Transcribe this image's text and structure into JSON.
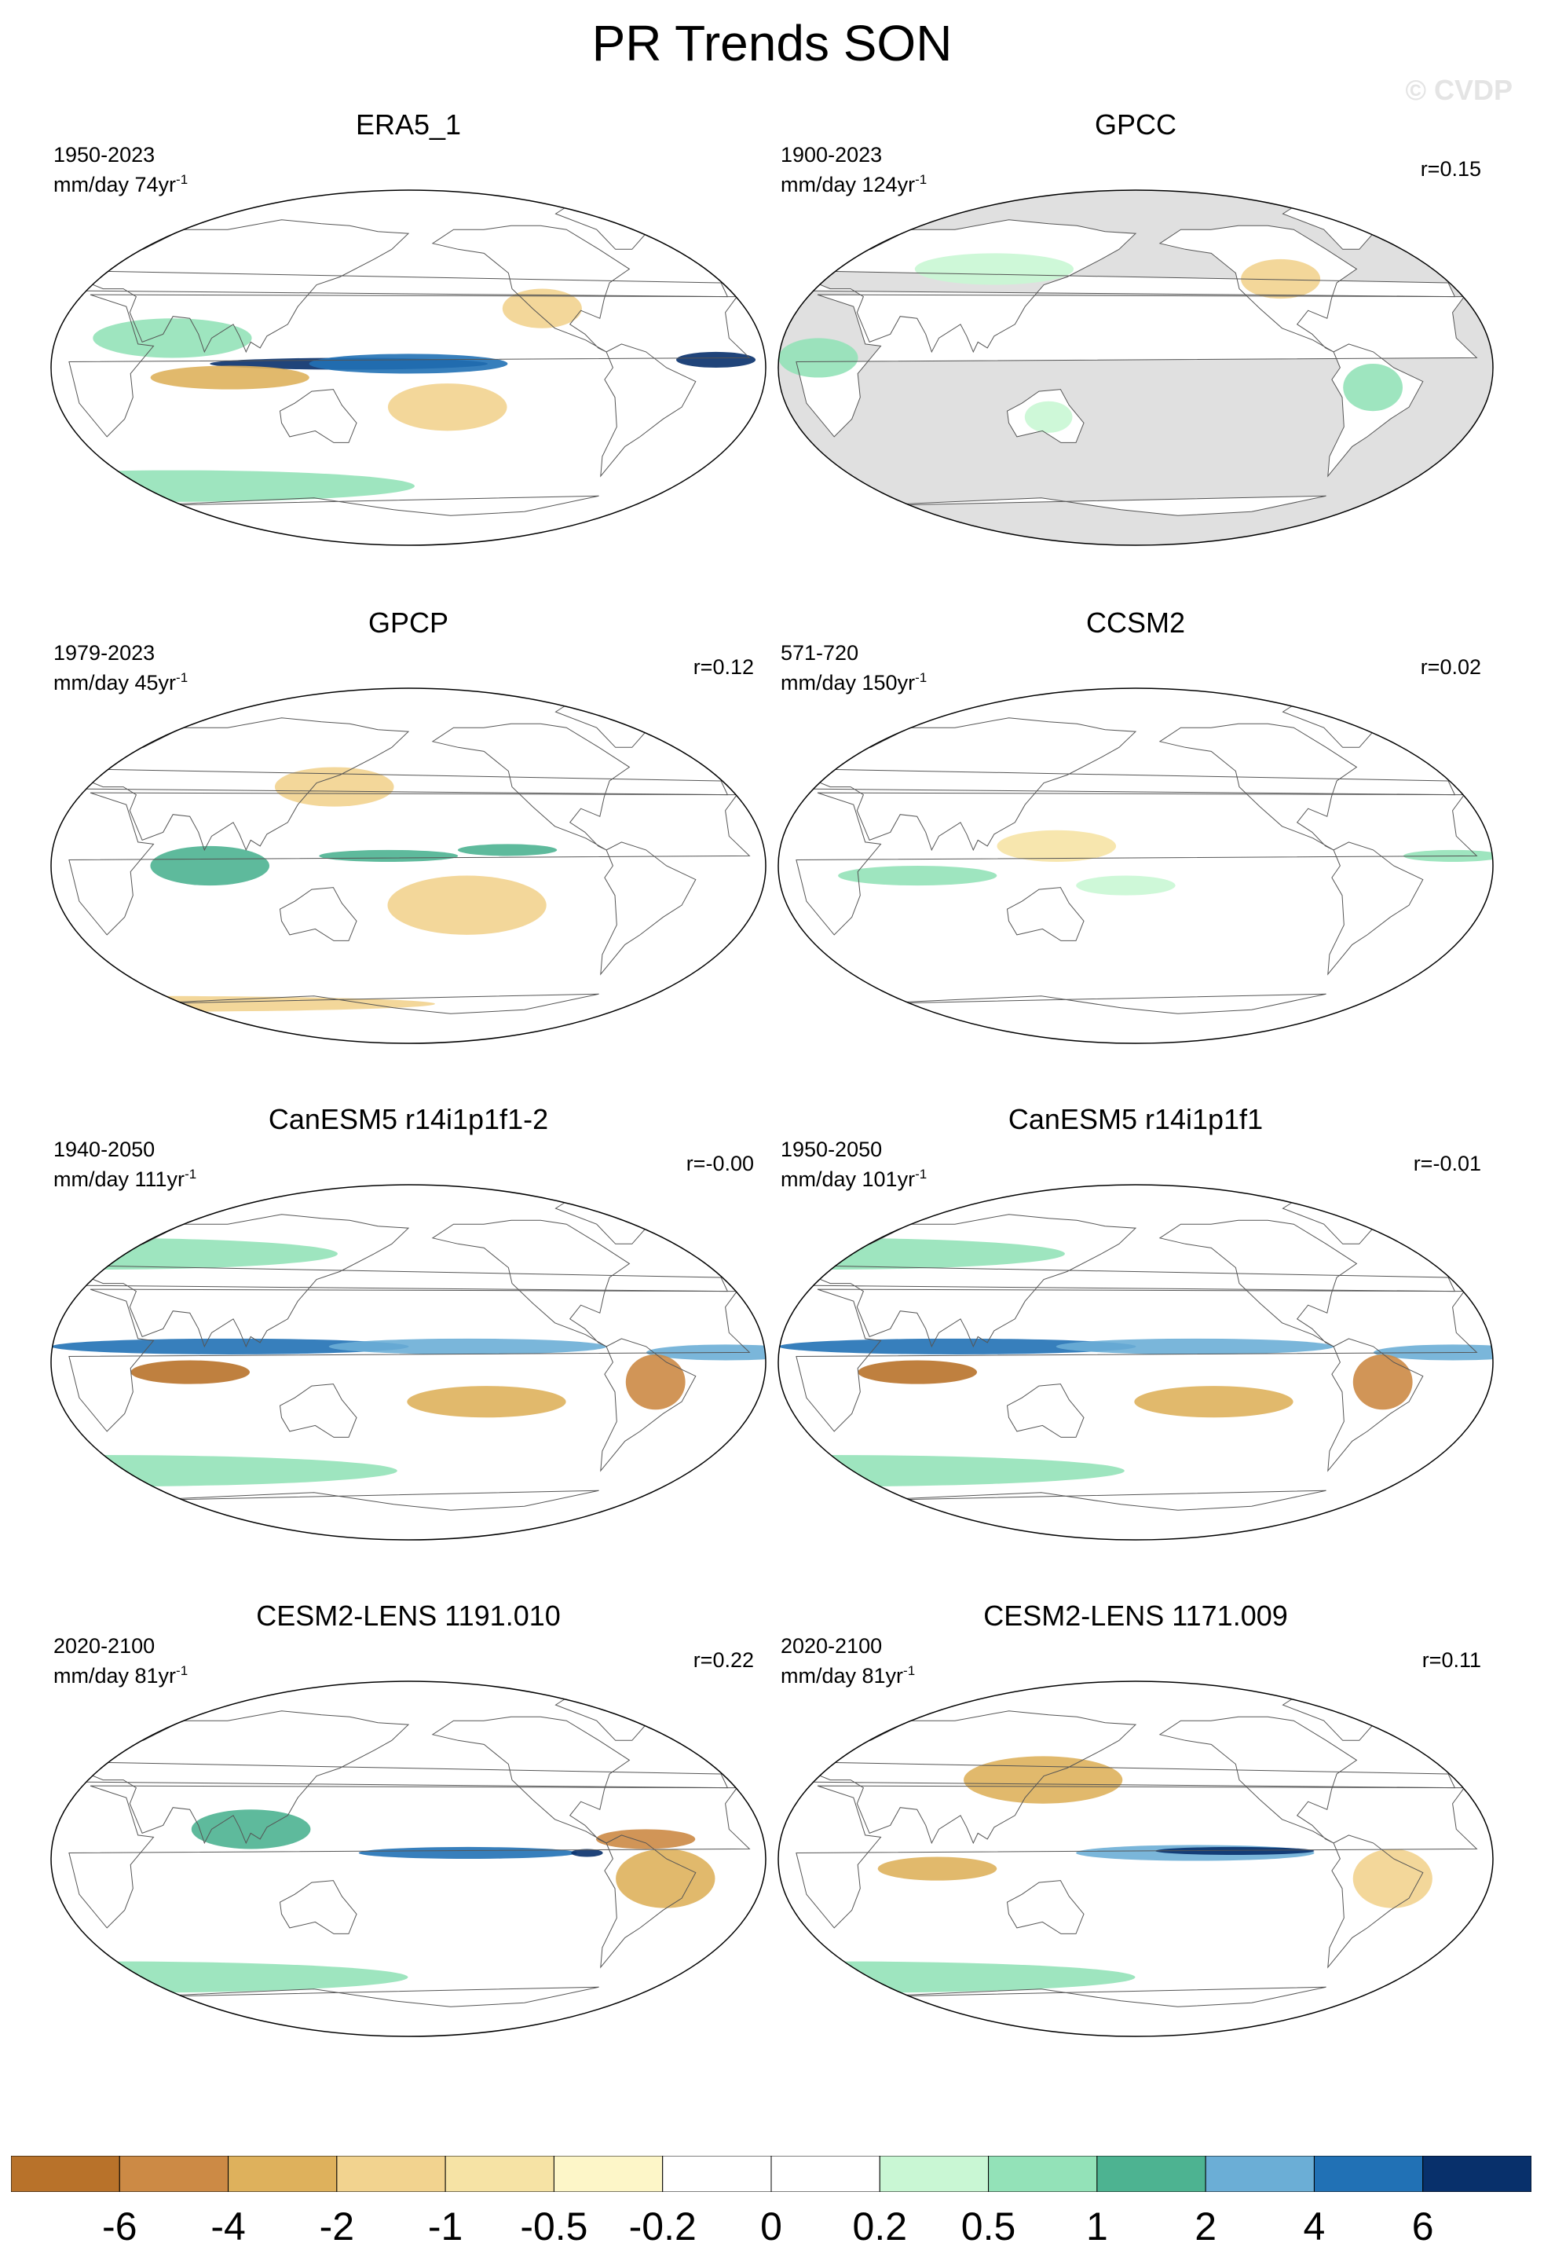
{
  "title": "PR Trends SON",
  "watermark": "© CVDP",
  "panels": [
    {
      "title": "ERA5_1",
      "period": "1950-2023",
      "units": "mm/day 74yr",
      "units_sup": "-1",
      "r": "",
      "land_mask": false,
      "blobs": [
        {
          "lon": 150,
          "lat": 2,
          "rx": 70,
          "ry": 3,
          "color": "#08306b"
        },
        {
          "lon": 180,
          "lat": 2,
          "rx": 50,
          "ry": 5,
          "color": "#2171b5"
        },
        {
          "lon": -25,
          "lat": 4,
          "rx": 20,
          "ry": 4,
          "color": "#08306b"
        },
        {
          "lon": 90,
          "lat": -5,
          "rx": 40,
          "ry": 6,
          "color": "#deb15c"
        },
        {
          "lon": -160,
          "lat": -20,
          "rx": 30,
          "ry": 12,
          "color": "#f2d38f"
        },
        {
          "lon": 60,
          "lat": 15,
          "rx": 40,
          "ry": 10,
          "color": "#93e2b8"
        },
        {
          "lon": 40,
          "lat": -60,
          "rx": 120,
          "ry": 8,
          "color": "#93e2b8"
        },
        {
          "lon": -110,
          "lat": 30,
          "rx": 20,
          "ry": 10,
          "color": "#f2d38f"
        }
      ]
    },
    {
      "title": "GPCC",
      "period": "1900-2023",
      "units": "mm/day 124yr",
      "units_sup": "-1",
      "r": "r=0.15",
      "land_mask": true,
      "blobs": [
        {
          "lon": -60,
          "lat": -10,
          "rx": 15,
          "ry": 12,
          "color": "#93e2b8"
        },
        {
          "lon": 20,
          "lat": 5,
          "rx": 20,
          "ry": 10,
          "color": "#93e2b8"
        },
        {
          "lon": 135,
          "lat": -25,
          "rx": 12,
          "ry": 8,
          "color": "#c9f7d4"
        },
        {
          "lon": -100,
          "lat": 45,
          "rx": 20,
          "ry": 10,
          "color": "#f2d38f"
        },
        {
          "lon": 100,
          "lat": 50,
          "rx": 40,
          "ry": 8,
          "color": "#c9f7d4"
        }
      ]
    },
    {
      "title": "GPCP",
      "period": "1979-2023",
      "units": "mm/day 45yr",
      "units_sup": "-1",
      "r": "r=0.12",
      "land_mask": false,
      "blobs": [
        {
          "lon": 170,
          "lat": 5,
          "rx": 35,
          "ry": 3,
          "color": "#4db391"
        },
        {
          "lon": -130,
          "lat": 8,
          "rx": 25,
          "ry": 3,
          "color": "#4db391"
        },
        {
          "lon": 80,
          "lat": 0,
          "rx": 30,
          "ry": 10,
          "color": "#4db391"
        },
        {
          "lon": -150,
          "lat": -20,
          "rx": 40,
          "ry": 15,
          "color": "#f2d38f"
        },
        {
          "lon": 140,
          "lat": 40,
          "rx": 30,
          "ry": 10,
          "color": "#f2d38f"
        },
        {
          "lon": 0,
          "lat": -70,
          "rx": 150,
          "ry": 4,
          "color": "#f2d38f"
        }
      ]
    },
    {
      "title": "CCSM2",
      "period": "571-720",
      "units": "mm/day 150yr",
      "units_sup": "-1",
      "r": "r=0.02",
      "land_mask": false,
      "blobs": [
        {
          "lon": 70,
          "lat": -5,
          "rx": 40,
          "ry": 5,
          "color": "#93e2b8"
        },
        {
          "lon": -20,
          "lat": 5,
          "rx": 25,
          "ry": 3,
          "color": "#93e2b8"
        },
        {
          "lon": 140,
          "lat": 10,
          "rx": 30,
          "ry": 8,
          "color": "#f6e3a5"
        },
        {
          "lon": 175,
          "lat": -10,
          "rx": 25,
          "ry": 5,
          "color": "#c9f7d4"
        }
      ]
    },
    {
      "title": "CanESM5 r14i1p1f1-2",
      "period": "1940-2050",
      "units": "mm/day 111yr",
      "units_sup": "-1",
      "r": "r=-0.00",
      "land_mask": false,
      "blobs": [
        {
          "lon": 90,
          "lat": 8,
          "rx": 90,
          "ry": 4,
          "color": "#2171b5"
        },
        {
          "lon": -150,
          "lat": 8,
          "rx": 70,
          "ry": 4,
          "color": "#6baed6"
        },
        {
          "lon": -20,
          "lat": 5,
          "rx": 40,
          "ry": 4,
          "color": "#6baed6"
        },
        {
          "lon": 70,
          "lat": -5,
          "rx": 30,
          "ry": 6,
          "color": "#b8722a"
        },
        {
          "lon": -55,
          "lat": -10,
          "rx": 15,
          "ry": 14,
          "color": "#cc8a45"
        },
        {
          "lon": -140,
          "lat": -20,
          "rx": 40,
          "ry": 8,
          "color": "#deb15c"
        },
        {
          "lon": 0,
          "lat": 55,
          "rx": 120,
          "ry": 8,
          "color": "#93e2b8"
        },
        {
          "lon": 0,
          "lat": -55,
          "rx": 150,
          "ry": 8,
          "color": "#93e2b8"
        }
      ]
    },
    {
      "title": "CanESM5 r14i1p1f1",
      "period": "1950-2050",
      "units": "mm/day 101yr",
      "units_sup": "-1",
      "r": "r=-0.01",
      "land_mask": false,
      "blobs": [
        {
          "lon": 90,
          "lat": 8,
          "rx": 90,
          "ry": 4,
          "color": "#2171b5"
        },
        {
          "lon": -150,
          "lat": 8,
          "rx": 70,
          "ry": 4,
          "color": "#6baed6"
        },
        {
          "lon": -20,
          "lat": 5,
          "rx": 40,
          "ry": 4,
          "color": "#6baed6"
        },
        {
          "lon": 70,
          "lat": -5,
          "rx": 30,
          "ry": 6,
          "color": "#b8722a"
        },
        {
          "lon": -55,
          "lat": -10,
          "rx": 15,
          "ry": 14,
          "color": "#cc8a45"
        },
        {
          "lon": -140,
          "lat": -20,
          "rx": 40,
          "ry": 8,
          "color": "#deb15c"
        },
        {
          "lon": 0,
          "lat": 55,
          "rx": 120,
          "ry": 8,
          "color": "#93e2b8"
        },
        {
          "lon": 0,
          "lat": -55,
          "rx": 150,
          "ry": 8,
          "color": "#93e2b8"
        }
      ]
    },
    {
      "title": "CESM2-LENS 1191.010",
      "period": "2020-2100",
      "units": "mm/day 81yr",
      "units_sup": "-1",
      "r": "r=0.22",
      "land_mask": false,
      "blobs": [
        {
          "lon": -150,
          "lat": 3,
          "rx": 55,
          "ry": 3,
          "color": "#2171b5"
        },
        {
          "lon": -90,
          "lat": 3,
          "rx": 8,
          "ry": 2,
          "color": "#08306b"
        },
        {
          "lon": -50,
          "lat": -10,
          "rx": 25,
          "ry": 15,
          "color": "#deb15c"
        },
        {
          "lon": -60,
          "lat": 10,
          "rx": 25,
          "ry": 5,
          "color": "#cc8a45"
        },
        {
          "lon": 100,
          "lat": 15,
          "rx": 30,
          "ry": 10,
          "color": "#4db391"
        },
        {
          "lon": 0,
          "lat": -60,
          "rx": 150,
          "ry": 8,
          "color": "#93e2b8"
        }
      ]
    },
    {
      "title": "CESM2-LENS 1171.009",
      "period": "2020-2100",
      "units": "mm/day 81yr",
      "units_sup": "-1",
      "r": "r=0.11",
      "land_mask": false,
      "blobs": [
        {
          "lon": -150,
          "lat": 3,
          "rx": 60,
          "ry": 4,
          "color": "#6baed6"
        },
        {
          "lon": -130,
          "lat": 4,
          "rx": 40,
          "ry": 2,
          "color": "#08306b"
        },
        {
          "lon": 80,
          "lat": -5,
          "rx": 30,
          "ry": 6,
          "color": "#deb15c"
        },
        {
          "lon": -50,
          "lat": -10,
          "rx": 20,
          "ry": 15,
          "color": "#f2d38f"
        },
        {
          "lon": 130,
          "lat": 40,
          "rx": 40,
          "ry": 12,
          "color": "#deb15c"
        },
        {
          "lon": 0,
          "lat": -60,
          "rx": 150,
          "ry": 8,
          "color": "#93e2b8"
        }
      ]
    }
  ],
  "colorbar": {
    "colors": [
      "#b8722a",
      "#cc8a45",
      "#deb15c",
      "#f2d38f",
      "#f6e3a5",
      "#fdf6c8",
      "#ffffff",
      "#ffffff",
      "#c9f7d4",
      "#93e2b8",
      "#4db391",
      "#6baed6",
      "#2171b5",
      "#08306b"
    ],
    "labels": [
      "-6",
      "-4",
      "-2",
      "-1",
      "-0.5",
      "-0.2",
      "0",
      "0.2",
      "0.5",
      "1",
      "2",
      "4",
      "6"
    ]
  }
}
